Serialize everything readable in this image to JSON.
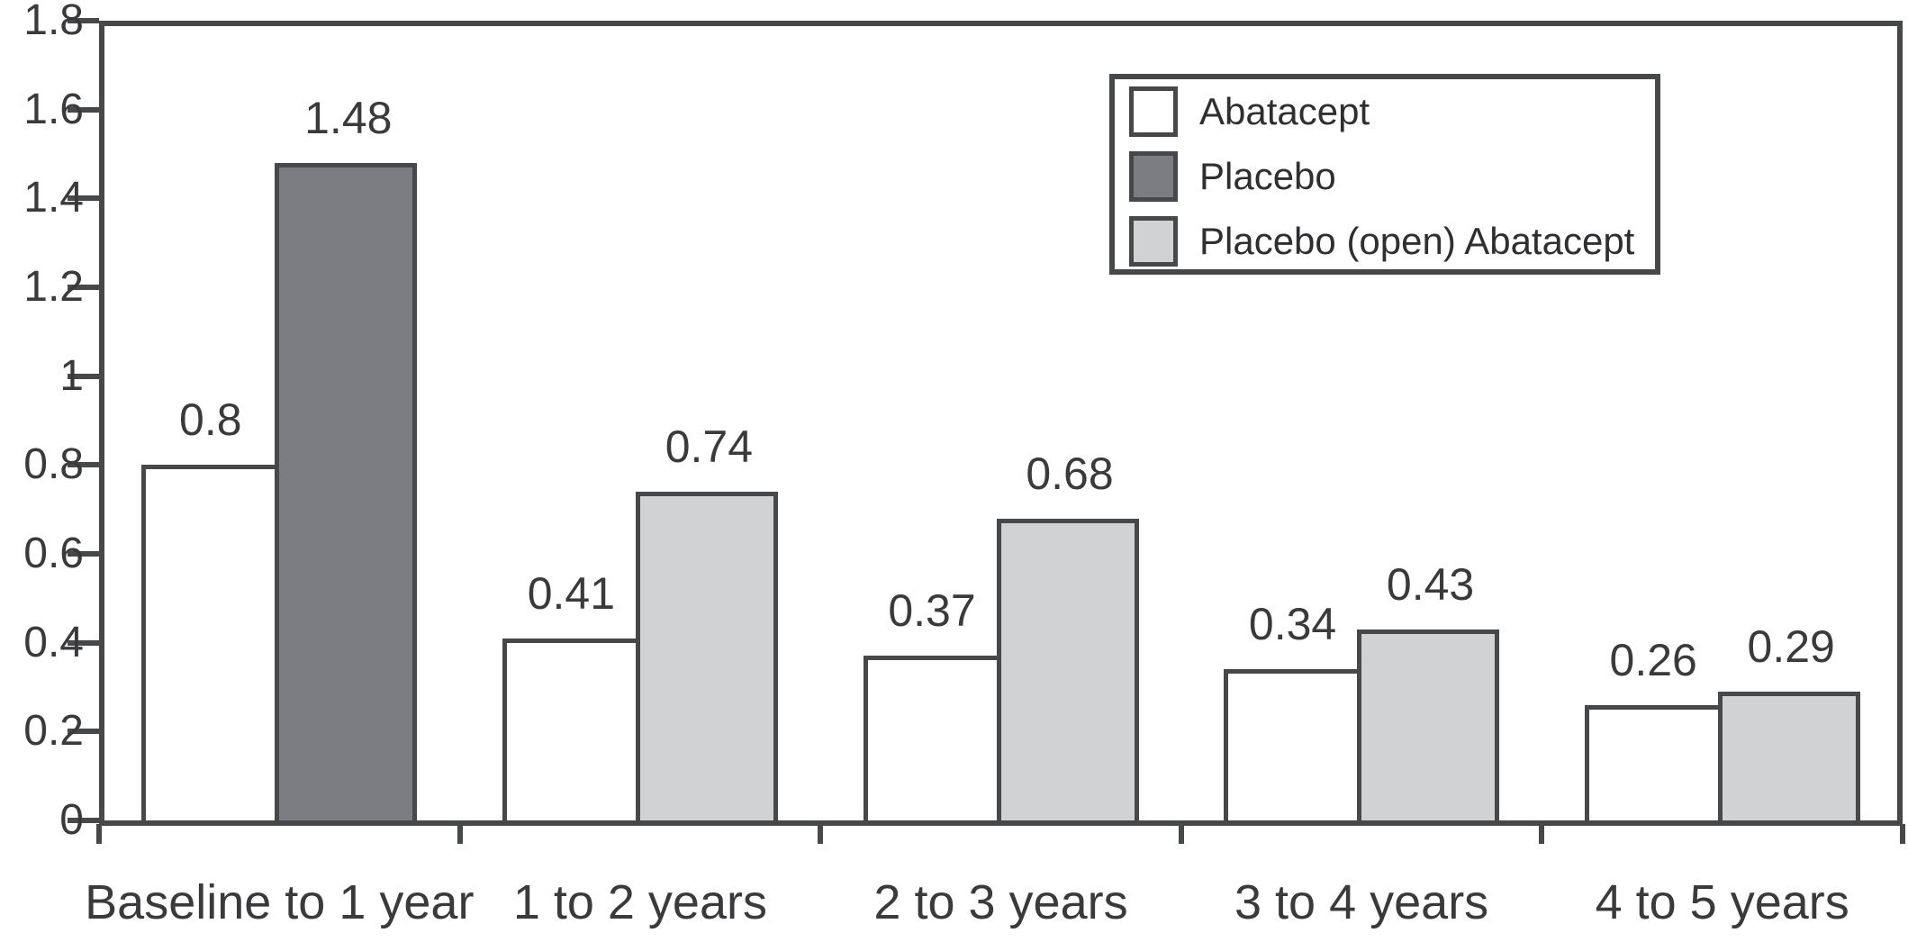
{
  "chart_data": {
    "type": "bar",
    "title": "",
    "xlabel": "",
    "ylabel": "",
    "ylim": [
      0,
      1.8
    ],
    "grid": false,
    "legend_position": "top-right",
    "categories": [
      "Baseline to 1 year",
      "1 to 2 years",
      "2 to 3 years",
      "3 to 4 years",
      "4 to 5 years"
    ],
    "yticks": [
      {
        "value": 0,
        "label": "0"
      },
      {
        "value": 0.2,
        "label": "0.2"
      },
      {
        "value": 0.4,
        "label": "0.4"
      },
      {
        "value": 0.6,
        "label": "0.6"
      },
      {
        "value": 0.8,
        "label": "0.8"
      },
      {
        "value": 1,
        "label": "1"
      },
      {
        "value": 1.2,
        "label": "1.2"
      },
      {
        "value": 1.4,
        "label": "1.4"
      },
      {
        "value": 1.6,
        "label": "1.6"
      },
      {
        "value": 1.8,
        "label": "1.8"
      }
    ],
    "series": [
      {
        "name": "Abatacept",
        "color": "#ffffff"
      },
      {
        "name": "Placebo",
        "color": "#7b7d81"
      },
      {
        "name": "Placebo (open) Abatacept",
        "color": "#d1d2d4"
      }
    ],
    "groups": [
      {
        "category": "Baseline to 1 year",
        "bars": [
          {
            "series": "Abatacept",
            "value": 0.8,
            "label": "0.8"
          },
          {
            "series": "Placebo",
            "value": 1.48,
            "label": "1.48"
          }
        ]
      },
      {
        "category": "1 to 2 years",
        "bars": [
          {
            "series": "Abatacept",
            "value": 0.41,
            "label": "0.41"
          },
          {
            "series": "Placebo (open) Abatacept",
            "value": 0.74,
            "label": "0.74"
          }
        ]
      },
      {
        "category": "2 to 3 years",
        "bars": [
          {
            "series": "Abatacept",
            "value": 0.37,
            "label": "0.37"
          },
          {
            "series": "Placebo (open) Abatacept",
            "value": 0.68,
            "label": "0.68"
          }
        ]
      },
      {
        "category": "3 to 4 years",
        "bars": [
          {
            "series": "Abatacept",
            "value": 0.34,
            "label": "0.34"
          },
          {
            "series": "Placebo (open) Abatacept",
            "value": 0.43,
            "label": "0.43"
          }
        ]
      },
      {
        "category": "4 to 5 years",
        "bars": [
          {
            "series": "Abatacept",
            "value": 0.26,
            "label": "0.26"
          },
          {
            "series": "Placebo (open) Abatacept",
            "value": 0.29,
            "label": "0.29"
          }
        ]
      }
    ],
    "axis_color": "#47484a",
    "text_color": "#3a3a3c"
  }
}
